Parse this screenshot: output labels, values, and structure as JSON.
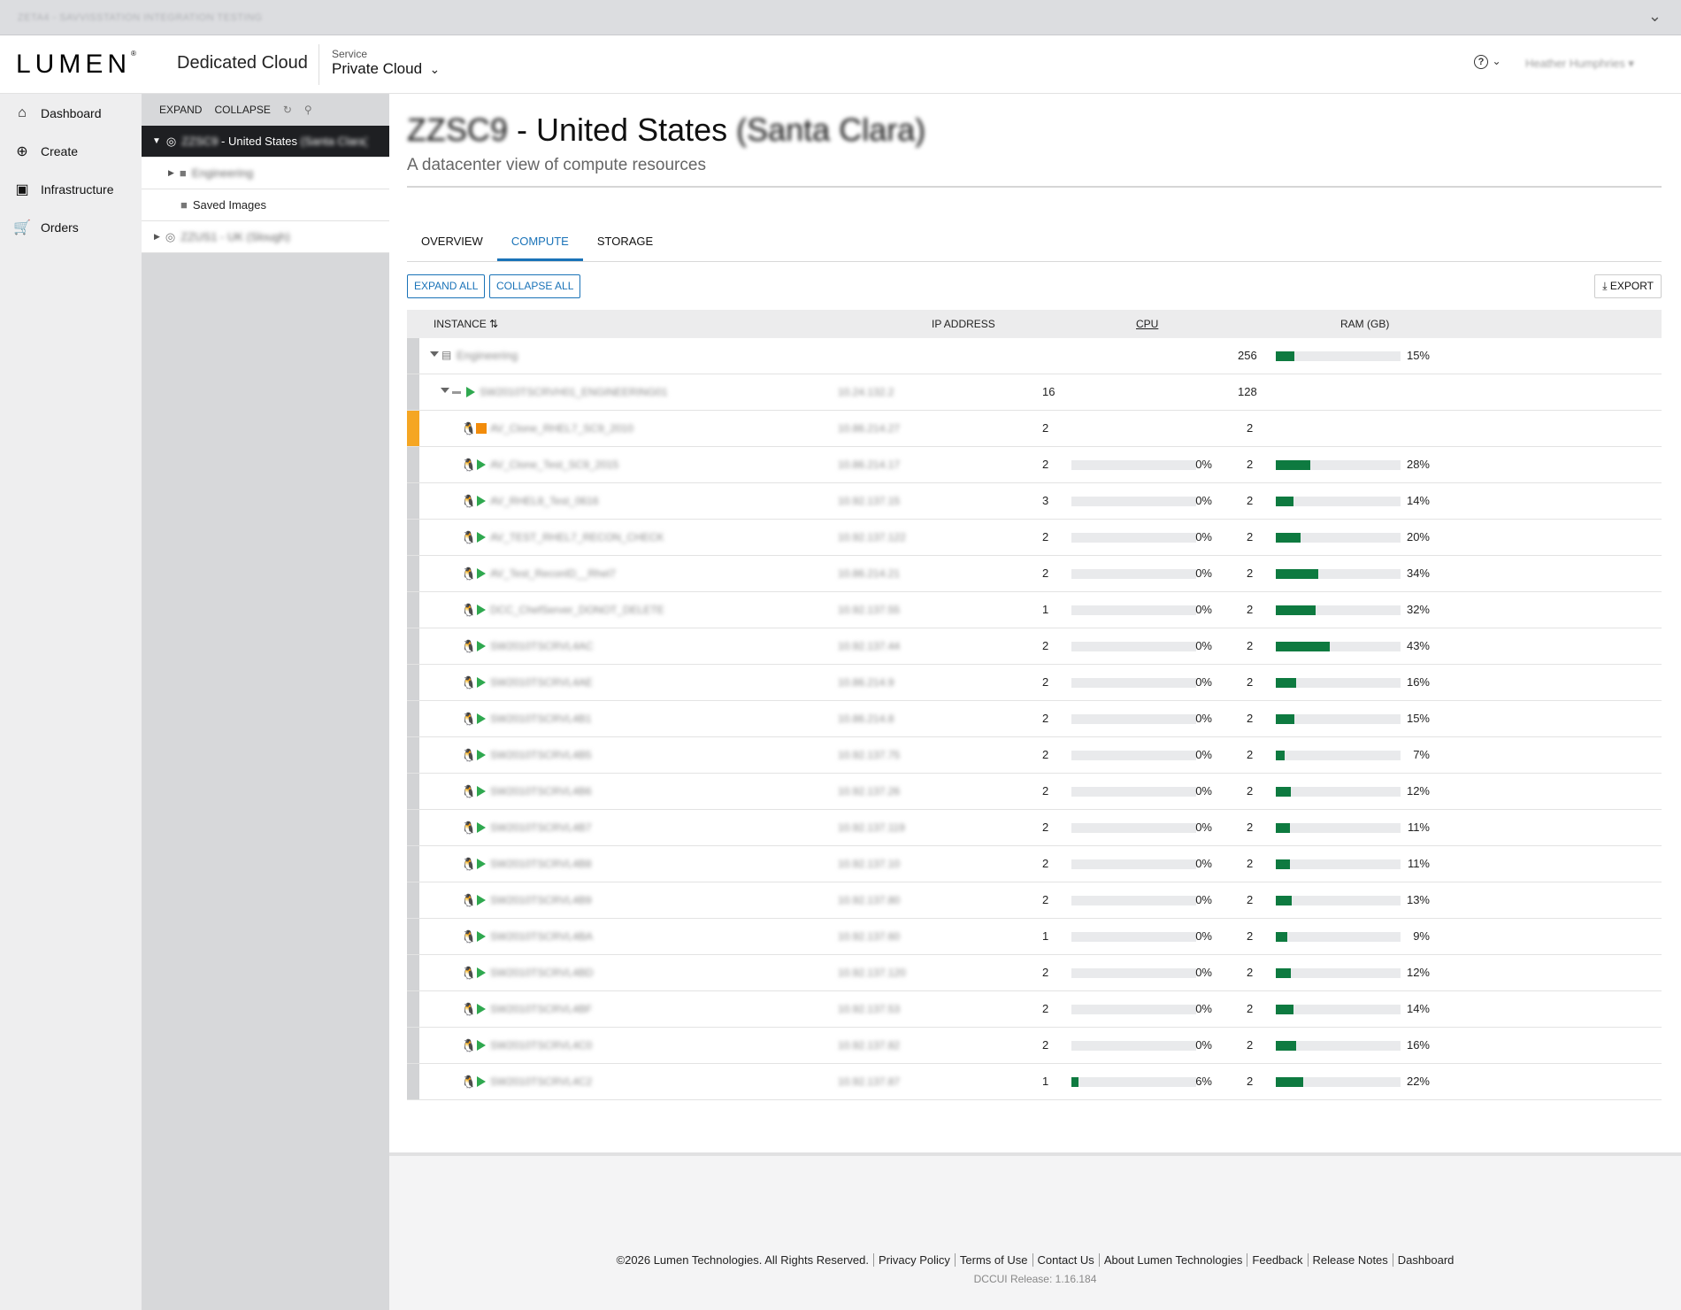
{
  "topbar": {
    "env_label": "ZETA4 - SAVVISSTATION INTEGRATION TESTING"
  },
  "header": {
    "logo": "LUMEN",
    "app_name": "Dedicated Cloud",
    "service_label": "Service",
    "service_value": "Private Cloud",
    "user_name": "Heather Humphries"
  },
  "nav": {
    "items": [
      {
        "label": "Dashboard",
        "icon": "home-icon"
      },
      {
        "label": "Create",
        "icon": "plus-circle-icon"
      },
      {
        "label": "Infrastructure",
        "icon": "chip-icon"
      },
      {
        "label": "Orders",
        "icon": "cart-icon"
      }
    ]
  },
  "tree": {
    "expand": "EXPAND",
    "collapse": "COLLAPSE",
    "items": [
      {
        "label": "ZZSC9 - United States (Santa Clara)",
        "prefix": "ZZSC9",
        "suffix": "(Santa Clara)",
        "main": " - United States "
      },
      {
        "label": "Engineering"
      },
      {
        "label": "Saved Images"
      },
      {
        "label": "ZZUS1 - UK (Slough)"
      }
    ]
  },
  "page": {
    "title_code": "ZZSC9",
    "title_main": " - United States ",
    "title_loc": "(Santa Clara)",
    "subtitle": "A datacenter view of compute resources"
  },
  "tabs": [
    "OVERVIEW",
    "COMPUTE",
    "STORAGE"
  ],
  "actions": {
    "expand_all": "EXPAND ALL",
    "collapse_all": "COLLAPSE ALL",
    "export": "EXPORT"
  },
  "columns": {
    "instance": "INSTANCE",
    "ip": "IP ADDRESS",
    "cpu": "CPU",
    "ram": "RAM (GB)"
  },
  "group": {
    "name": "Engineering",
    "ram": "256",
    "ram_pct": 15
  },
  "host": {
    "name": "SW2010TSCRVH01_ENGINEERING01",
    "ip": "10.24.132.2",
    "cpu": "16",
    "ram": "128"
  },
  "vms": [
    {
      "name": "AV_Clone_RHEL7_SC9_2010",
      "ip": "10.86.214.27",
      "cpu": "2",
      "ram": "2",
      "state": "stopped",
      "cpu_pct": null,
      "ram_pct": null
    },
    {
      "name": "AV_Clone_Test_SC9_2015",
      "ip": "10.86.214.17",
      "cpu": "2",
      "cpu_pct": 0,
      "ram": "2",
      "ram_pct": 28,
      "state": "running"
    },
    {
      "name": "AV_RHEL8_Test_0616",
      "ip": "10.92.137.15",
      "cpu": "3",
      "cpu_pct": 0,
      "ram": "2",
      "ram_pct": 14,
      "state": "running"
    },
    {
      "name": "AV_TEST_RHEL7_RECON_CHECK",
      "ip": "10.92.137.122",
      "cpu": "2",
      "cpu_pct": 0,
      "ram": "2",
      "ram_pct": 20,
      "state": "running"
    },
    {
      "name": "AV_Test_ReconID__Rhel7",
      "ip": "10.86.214.21",
      "cpu": "2",
      "cpu_pct": 0,
      "ram": "2",
      "ram_pct": 34,
      "state": "running"
    },
    {
      "name": "DCC_ChefServer_DONOT_DELETE",
      "ip": "10.92.137.55",
      "cpu": "1",
      "cpu_pct": 0,
      "ram": "2",
      "ram_pct": 32,
      "state": "running"
    },
    {
      "name": "SW2010TSCRVL4AC",
      "ip": "10.92.137.44",
      "cpu": "2",
      "cpu_pct": 0,
      "ram": "2",
      "ram_pct": 43,
      "state": "running"
    },
    {
      "name": "SW2010TSCRVL4AE",
      "ip": "10.86.214.9",
      "cpu": "2",
      "cpu_pct": 0,
      "ram": "2",
      "ram_pct": 16,
      "state": "running"
    },
    {
      "name": "SW2010TSCRVL4B1",
      "ip": "10.86.214.8",
      "cpu": "2",
      "cpu_pct": 0,
      "ram": "2",
      "ram_pct": 15,
      "state": "running"
    },
    {
      "name": "SW2010TSCRVL4B5",
      "ip": "10.92.137.75",
      "cpu": "2",
      "cpu_pct": 0,
      "ram": "2",
      "ram_pct": 7,
      "state": "running"
    },
    {
      "name": "SW2010TSCRVL4B6",
      "ip": "10.92.137.26",
      "cpu": "2",
      "cpu_pct": 0,
      "ram": "2",
      "ram_pct": 12,
      "state": "running"
    },
    {
      "name": "SW2010TSCRVL4B7",
      "ip": "10.92.137.119",
      "cpu": "2",
      "cpu_pct": 0,
      "ram": "2",
      "ram_pct": 11,
      "state": "running"
    },
    {
      "name": "SW2010TSCRVL4B8",
      "ip": "10.92.137.10",
      "cpu": "2",
      "cpu_pct": 0,
      "ram": "2",
      "ram_pct": 11,
      "state": "running"
    },
    {
      "name": "SW2010TSCRVL4B9",
      "ip": "10.92.137.80",
      "cpu": "2",
      "cpu_pct": 0,
      "ram": "2",
      "ram_pct": 13,
      "state": "running"
    },
    {
      "name": "SW2010TSCRVL4BA",
      "ip": "10.92.137.60",
      "cpu": "1",
      "cpu_pct": 0,
      "ram": "2",
      "ram_pct": 9,
      "state": "running"
    },
    {
      "name": "SW2010TSCRVL4BD",
      "ip": "10.92.137.120",
      "cpu": "2",
      "cpu_pct": 0,
      "ram": "2",
      "ram_pct": 12,
      "state": "running"
    },
    {
      "name": "SW2010TSCRVL4BF",
      "ip": "10.92.137.53",
      "cpu": "2",
      "cpu_pct": 0,
      "ram": "2",
      "ram_pct": 14,
      "state": "running"
    },
    {
      "name": "SW2010TSCRVL4C0",
      "ip": "10.92.137.82",
      "cpu": "2",
      "cpu_pct": 0,
      "ram": "2",
      "ram_pct": 16,
      "state": "running"
    },
    {
      "name": "SW2010TSCRVL4C2",
      "ip": "10.92.137.87",
      "cpu": "1",
      "cpu_pct": 6,
      "ram": "2",
      "ram_pct": 22,
      "state": "running"
    }
  ],
  "footer": {
    "links": [
      "©2026 Lumen Technologies. All Rights Reserved.",
      "Privacy Policy",
      "Terms of Use",
      "Contact Us",
      "About Lumen Technologies",
      "Feedback",
      "Release Notes",
      "Dashboard"
    ],
    "release": "DCCUI Release: 1.16.184"
  },
  "colors": {
    "accent": "#1a73b8",
    "bar_fill": "#0e7a40",
    "running": "#2fa84f",
    "stopped": "#f28c0b",
    "tree_selected": "#1e1f22"
  }
}
